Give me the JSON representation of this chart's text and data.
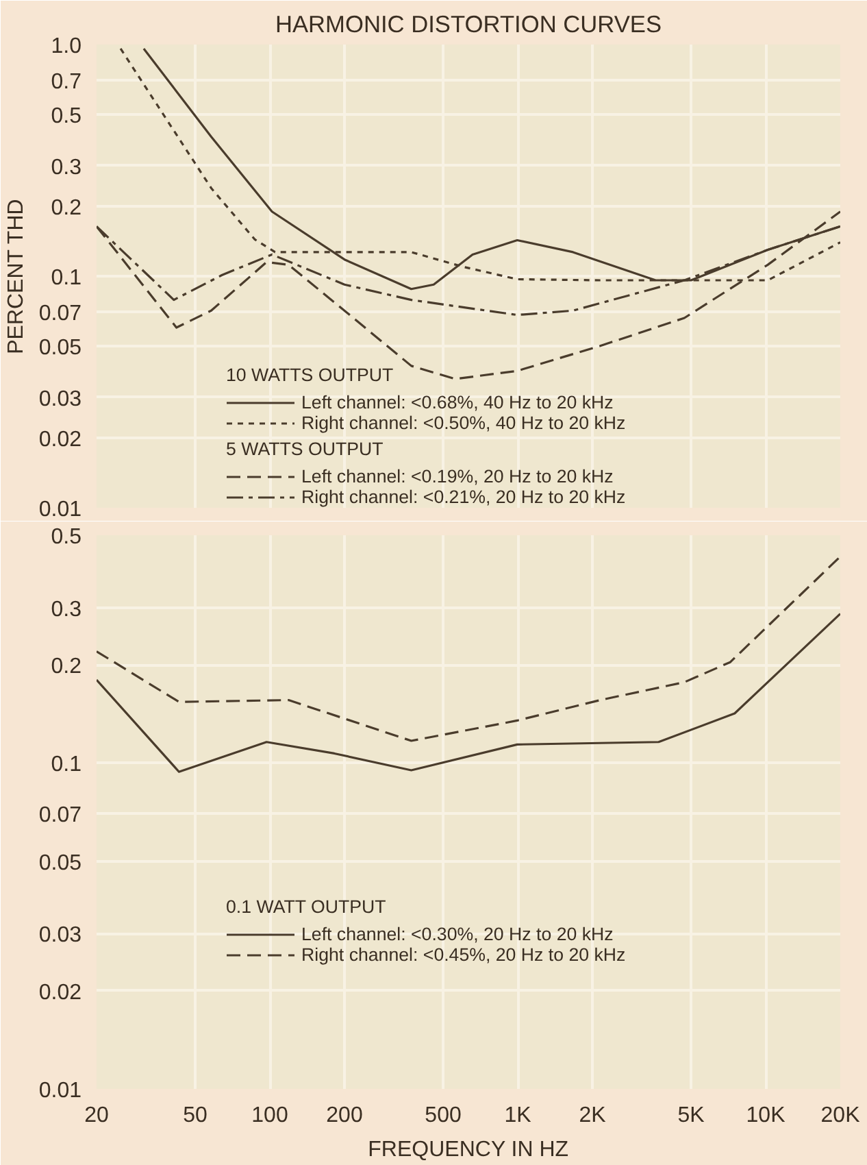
{
  "chart_data": [
    {
      "type": "line",
      "title": "HARMONIC DISTORTION CURVES",
      "ylabel": "PERCENT THD",
      "legend_title": "10 WATTS OUTPUT",
      "annotations": [
        "5 WATTS OUTPUT"
      ],
      "log": "xy",
      "grid": true,
      "legend": "bottom",
      "tick_labels": "y",
      "xlim": [
        20,
        20000
      ],
      "xticks": [
        20,
        50,
        100,
        200,
        500,
        1000,
        2000,
        5000,
        10000,
        20000
      ],
      "ylim": [
        0.01,
        1.0
      ],
      "yticks": [
        0.01,
        0.02,
        0.03,
        0.05,
        0.07,
        0.1,
        0.2,
        0.3,
        0.5,
        0.7,
        {
          "value": 1,
          "label": "1.0"
        }
      ],
      "series": [
        {
          "name": "Left channel: <0.68%, 40 Hz to 20 kHz",
          "color": "#4a3c2c",
          "line_style": "solid",
          "x": [
            31,
            58,
            102,
            200,
            372,
            458,
            657,
            995,
            1670,
            3600,
            5000,
            10200,
            20000
          ],
          "values": [
            0.96,
            0.4,
            0.19,
            0.118,
            0.088,
            0.092,
            0.124,
            0.143,
            0.127,
            0.096,
            0.096,
            0.13,
            0.164
          ]
        },
        {
          "name": "Right channel: <0.50%, 40 Hz to 20 kHz",
          "color": "#4a3c2c",
          "line_style": "dotted",
          "x": [
            25,
            58,
            87,
            105,
            180,
            372,
            598,
            995,
            2150,
            10200,
            20000
          ],
          "values": [
            0.96,
            0.24,
            0.144,
            0.127,
            0.127,
            0.127,
            0.11,
            0.097,
            0.096,
            0.096,
            0.14
          ]
        },
        {
          "name": "Left channel: <0.19%, 20 Hz to 20 kHz",
          "color": "#4a3c2c",
          "line_style": "dashed",
          "x": [
            20,
            42,
            58,
            97,
            119,
            210,
            372,
            560,
            995,
            2150,
            4700,
            10200,
            20000
          ],
          "values": [
            0.164,
            0.06,
            0.071,
            0.115,
            0.112,
            0.068,
            0.041,
            0.036,
            0.039,
            0.05,
            0.066,
            0.112,
            0.19
          ]
        },
        {
          "name": "Right channel: <0.21%, 20 Hz to 20 kHz",
          "color": "#4a3c2c",
          "line_style": "dashdot",
          "x": [
            20,
            41,
            64,
            102,
            200,
            372,
            995,
            1670,
            4700,
            10200,
            20000
          ],
          "values": [
            0.164,
            0.079,
            0.101,
            0.124,
            0.092,
            0.079,
            0.068,
            0.071,
            0.096,
            0.13,
            0.164
          ]
        }
      ]
    },
    {
      "type": "line",
      "xlabel": "FREQUENCY IN HZ",
      "legend_title": "0.1 WATT OUTPUT",
      "log": "xy",
      "grid": true,
      "legend": "center",
      "xlim": [
        20,
        20000
      ],
      "xticks": [
        20,
        50,
        100,
        200,
        500,
        {
          "value": 1000,
          "label": "1K"
        },
        {
          "value": 2000,
          "label": "2K"
        },
        {
          "value": 5000,
          "label": "5K"
        },
        {
          "value": 10000,
          "label": "10K"
        },
        {
          "value": 20000,
          "label": "20K"
        }
      ],
      "ylim": [
        0.01,
        0.5
      ],
      "yticks": [
        0.01,
        0.02,
        0.03,
        0.05,
        0.07,
        0.1,
        0.2,
        0.3,
        0.5
      ],
      "series": [
        {
          "name": "Left channel: <0.30%, 20 Hz to 20 kHz",
          "color": "#4a3c2c",
          "line_style": "solid",
          "x": [
            20,
            43,
            97,
            182,
            372,
            995,
            3700,
            7500,
            20000
          ],
          "values": [
            0.18,
            0.094,
            0.116,
            0.107,
            0.095,
            0.114,
            0.116,
            0.142,
            0.287
          ]
        },
        {
          "name": "Right channel: <0.45%, 20 Hz to 20 kHz",
          "color": "#4a3c2c",
          "line_style": "dashed",
          "x": [
            20,
            43,
            119,
            372,
            995,
            2150,
            4700,
            7200,
            20000
          ],
          "values": [
            0.22,
            0.154,
            0.156,
            0.117,
            0.135,
            0.156,
            0.177,
            0.204,
            0.43
          ]
        }
      ]
    }
  ]
}
